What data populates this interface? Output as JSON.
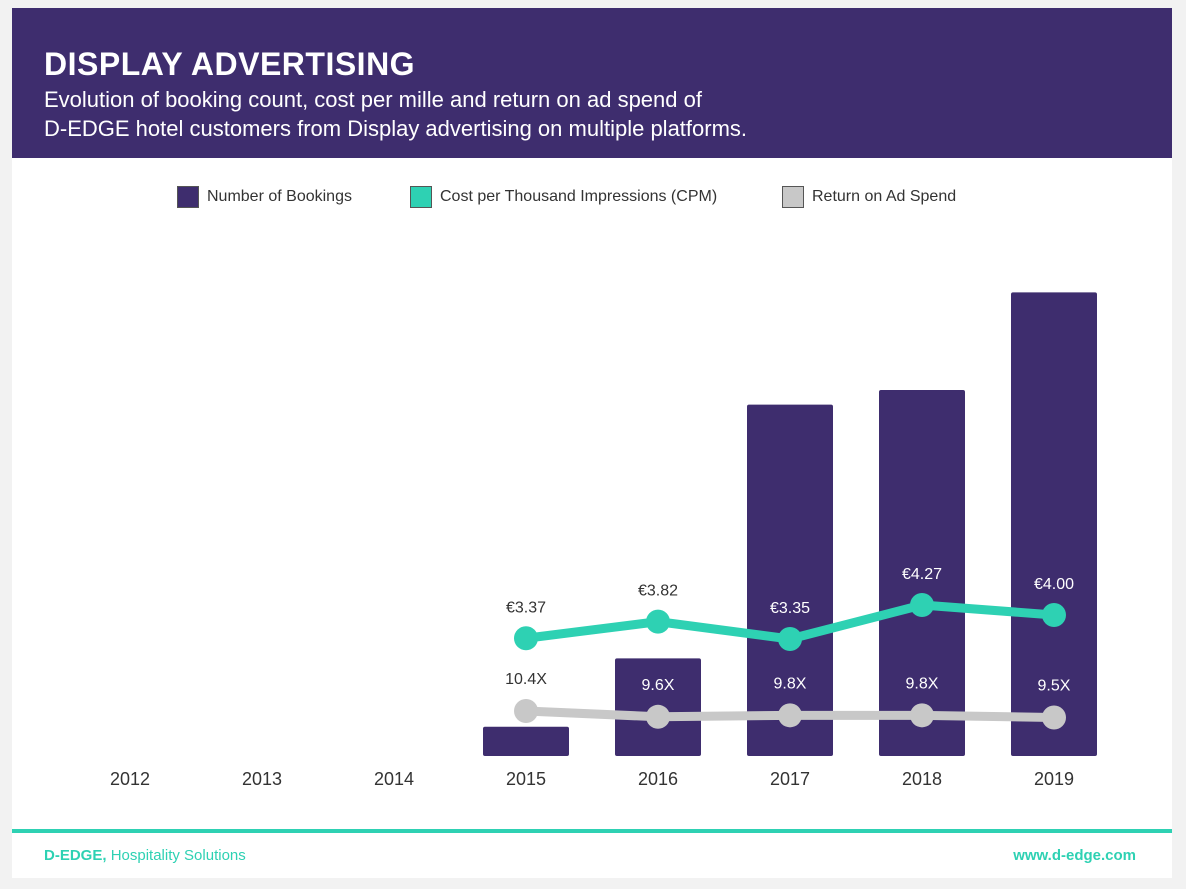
{
  "header": {
    "title": "DISPLAY ADVERTISING",
    "subtitle_line1": "Evolution of booking count, cost per mille and return on ad spend of",
    "subtitle_line2": "D-EDGE hotel customers from Display advertising on multiple platforms."
  },
  "legend": [
    {
      "label": "Number of Bookings",
      "color": "#3e2d6e"
    },
    {
      "label": "Cost per Thousand Impressions (CPM)",
      "color": "#2ed1b3"
    },
    {
      "label": "Return on Ad Spend",
      "color": "#c8c8c8"
    }
  ],
  "chart_data": {
    "type": "bar",
    "categories": [
      "2012",
      "2013",
      "2014",
      "2015",
      "2016",
      "2017",
      "2018",
      "2019"
    ],
    "ylim": [
      0,
      100
    ],
    "legend_position": "top-center",
    "grid": false,
    "series": [
      {
        "name": "Number of Bookings",
        "type": "bar",
        "color": "#3e2d6e",
        "values": [
          null,
          null,
          null,
          6,
          20,
          72,
          75,
          95
        ]
      },
      {
        "name": "Cost per Thousand Impressions (CPM)",
        "type": "line",
        "color": "#2ed1b3",
        "values": [
          null,
          null,
          null,
          3.37,
          3.82,
          3.35,
          4.27,
          4.0
        ],
        "labels": [
          null,
          null,
          null,
          "€3.37",
          "€3.82",
          "€3.35",
          "€4.27",
          "€4.00"
        ]
      },
      {
        "name": "Return on Ad Spend",
        "type": "line",
        "color": "#c8c8c8",
        "values": [
          null,
          null,
          null,
          10.4,
          9.6,
          9.8,
          9.8,
          9.5
        ],
        "labels": [
          null,
          null,
          null,
          "10.4X",
          "9.6X",
          "9.8X",
          "9.8X",
          "9.5X"
        ]
      }
    ]
  },
  "footer": {
    "brand": "D-EDGE,",
    "tagline": "Hospitality Solutions",
    "url": "www.d-edge.com"
  }
}
